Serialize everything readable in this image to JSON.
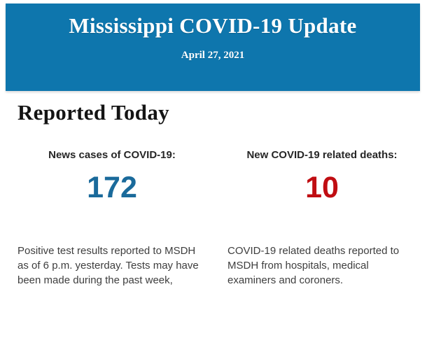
{
  "banner": {
    "title": "Mississippi COVID-19 Update",
    "date": "April 27, 2021",
    "bg_color": "#0e76ad",
    "text_color": "#ffffff"
  },
  "section": {
    "heading": "Reported Today"
  },
  "stats": [
    {
      "label": "News cases of COVID-19:",
      "value": "172",
      "value_color": "#1a6a9b",
      "description": "Positive test results reported to MSDH as of 6 p.m. yesterday. Tests may have been made during the past week,"
    },
    {
      "label": "New COVID-19 related deaths:",
      "value": "10",
      "value_color": "#c00d12",
      "description": "COVID-19 related deaths reported to MSDH from hospitals, medical examiners and coroners."
    }
  ]
}
